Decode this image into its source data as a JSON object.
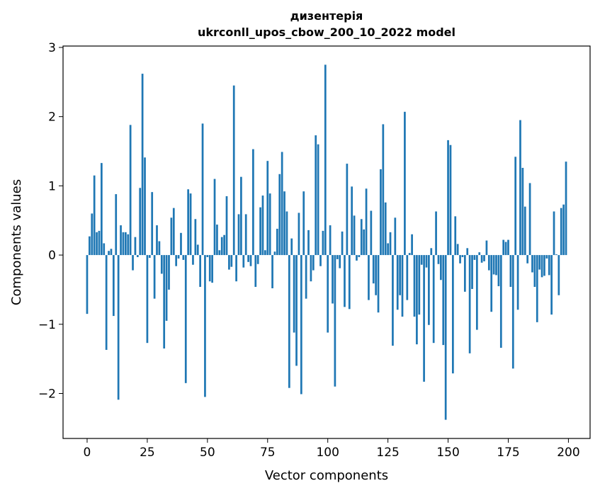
{
  "chart_data": {
    "type": "bar",
    "title_line1": "дизентерія",
    "title_line2": "ukrconll_upos_cbow_200_10_2022 model",
    "xlabel": "Vector components",
    "ylabel": "Components values",
    "xlim": [
      -10,
      209
    ],
    "ylim": [
      -2.65,
      3.02
    ],
    "xticks": [
      0,
      25,
      50,
      75,
      100,
      125,
      150,
      175,
      200
    ],
    "yticks": [
      -2,
      -1,
      0,
      1,
      2,
      3
    ],
    "ytick_labels": [
      "−2",
      "−1",
      "0",
      "1",
      "2",
      "3"
    ],
    "bar_color": "#1f77b4",
    "grid": false,
    "values": [
      -0.85,
      0.27,
      0.6,
      1.15,
      0.33,
      0.35,
      1.33,
      0.17,
      -1.37,
      0.06,
      0.09,
      -0.88,
      0.88,
      -2.09,
      0.43,
      0.33,
      0.33,
      0.3,
      1.88,
      -0.22,
      0.26,
      -0.03,
      0.97,
      2.62,
      1.41,
      -1.27,
      -0.04,
      0.91,
      -0.63,
      0.43,
      0.2,
      -0.27,
      -1.35,
      -0.95,
      -0.5,
      0.54,
      0.68,
      -0.16,
      -0.05,
      0.32,
      -0.07,
      -1.85,
      0.95,
      0.89,
      -0.14,
      0.52,
      0.15,
      -0.46,
      1.9,
      -2.05,
      -0.03,
      -0.38,
      -0.4,
      1.1,
      0.44,
      0.07,
      0.26,
      0.29,
      0.85,
      -0.21,
      -0.17,
      2.45,
      -0.38,
      0.59,
      1.13,
      -0.18,
      0.59,
      -0.1,
      -0.16,
      1.53,
      -0.46,
      -0.13,
      0.69,
      0.86,
      0.07,
      1.36,
      0.89,
      -0.48,
      0.05,
      0.38,
      1.17,
      1.49,
      0.92,
      0.63,
      -1.92,
      0.24,
      -1.12,
      -1.6,
      0.61,
      -2.01,
      0.92,
      -0.63,
      0.36,
      -0.38,
      -0.22,
      1.73,
      1.6,
      -0.16,
      0.35,
      2.75,
      -1.12,
      0.43,
      -0.7,
      -1.9,
      -0.06,
      -0.19,
      0.34,
      -0.75,
      1.32,
      -0.78,
      0.99,
      0.57,
      -0.08,
      -0.03,
      0.52,
      0.37,
      0.96,
      -0.65,
      0.64,
      -0.41,
      -0.58,
      -0.83,
      1.24,
      1.89,
      0.76,
      0.17,
      0.33,
      -1.31,
      0.54,
      -0.79,
      -0.58,
      -0.89,
      2.07,
      -0.65,
      0.03,
      0.3,
      -0.89,
      -1.29,
      -0.86,
      -0.14,
      -1.83,
      -0.18,
      -1.01,
      0.1,
      -1.27,
      0.63,
      -0.13,
      -0.36,
      -1.3,
      -2.38,
      1.66,
      1.59,
      -1.71,
      0.56,
      0.16,
      -0.12,
      -0.03,
      -0.53,
      0.1,
      -1.42,
      -0.49,
      -0.07,
      -1.08,
      0.04,
      -0.11,
      -0.09,
      0.21,
      -0.22,
      -0.82,
      -0.28,
      -0.29,
      -0.45,
      -1.34,
      0.22,
      0.19,
      0.22,
      -0.46,
      -1.64,
      1.42,
      -0.79,
      1.95,
      1.26,
      0.7,
      -0.12,
      1.04,
      -0.25,
      -0.46,
      -0.97,
      -0.21,
      -0.32,
      -0.3,
      -0.05,
      -0.29,
      -0.86,
      0.63,
      0.01,
      -0.58,
      0.68,
      0.73,
      1.35
    ]
  }
}
